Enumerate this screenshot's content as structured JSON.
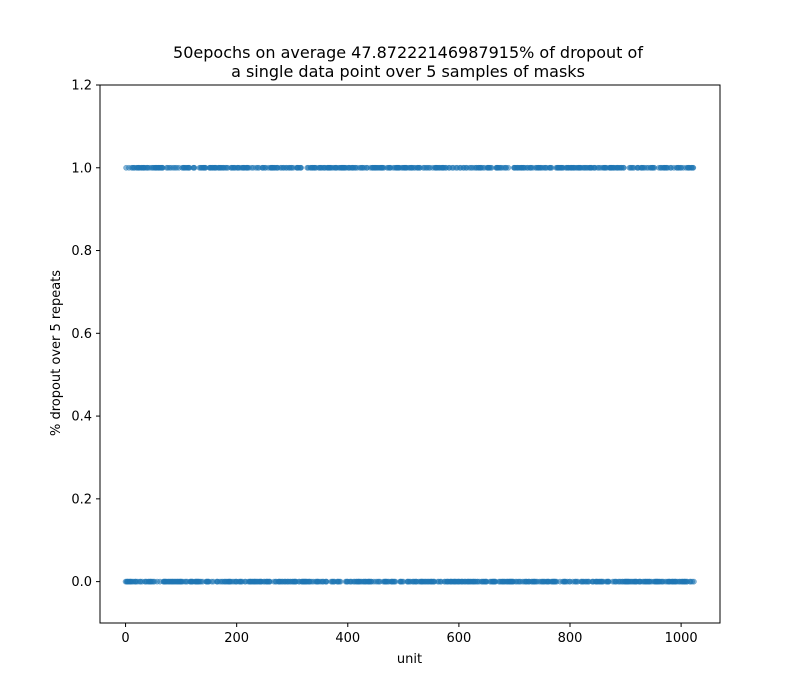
{
  "chart_data": {
    "type": "scatter",
    "title_line1": "50epochs on average 47.87222146987915% of dropout of",
    "title_line2": "a single data point over 5 samples of masks",
    "xlabel": "unit",
    "ylabel": "% dropout over 5 repeats",
    "xlim": [
      -46,
      1070
    ],
    "ylim": [
      -0.1,
      1.2
    ],
    "x_ticks": [
      0,
      200,
      400,
      600,
      800,
      1000
    ],
    "x_tick_labels": [
      "0",
      "200",
      "400",
      "600",
      "800",
      "1000"
    ],
    "y_ticks": [
      0.0,
      0.2,
      0.4,
      0.6,
      0.8,
      1.0,
      1.2
    ],
    "y_tick_labels": [
      "0.0",
      "0.2",
      "0.4",
      "0.6",
      "0.8",
      "1.0",
      "1.2"
    ],
    "grid": false,
    "marker_color": "#1f77b4",
    "series": [
      {
        "values_description_levels": [
          0.0,
          1.0
        ],
        "x_range": [
          0,
          1023
        ],
        "level_1_fraction": 0.4787,
        "n_points": 1024
      }
    ]
  }
}
